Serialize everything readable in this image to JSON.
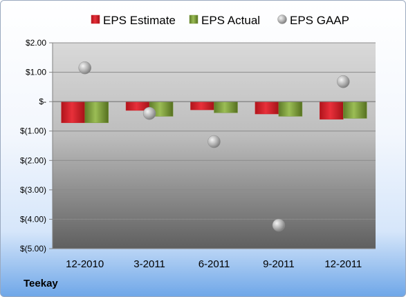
{
  "company": "Teekay",
  "colors": {
    "estimate": "#cc2229",
    "actual": "#7a9a3c",
    "gaap": "#b0b0b0"
  },
  "chart_data": {
    "type": "bar",
    "categories": [
      "12-2010",
      "3-2011",
      "6-2011",
      "9-2011",
      "12-2011"
    ],
    "series": [
      {
        "name": "EPS Estimate",
        "kind": "bar",
        "values": [
          -0.72,
          -0.3,
          -0.28,
          -0.42,
          -0.6
        ]
      },
      {
        "name": "EPS Actual",
        "kind": "bar",
        "values": [
          -0.72,
          -0.5,
          -0.38,
          -0.5,
          -0.57
        ]
      },
      {
        "name": "EPS GAAP",
        "kind": "marker",
        "values": [
          1.15,
          -0.4,
          -1.36,
          -4.2,
          0.68
        ]
      }
    ],
    "yticks": [
      "$2.00",
      "$1.00",
      "$-",
      "$(1.00)",
      "$(2.00)",
      "$(3.00)",
      "$(4.00)",
      "$(5.00)"
    ],
    "ylim": [
      -5,
      2
    ],
    "legend_position": "top",
    "grid": true
  }
}
